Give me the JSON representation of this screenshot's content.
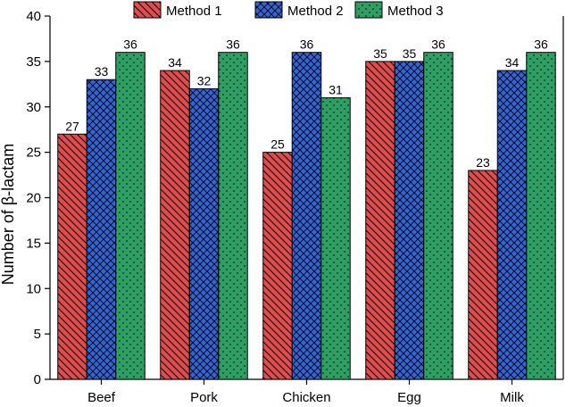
{
  "chart_data": {
    "type": "bar",
    "categories": [
      "Beef",
      "Pork",
      "Chicken",
      "Egg",
      "Milk"
    ],
    "series": [
      {
        "name": "Method 1",
        "values": [
          27,
          34,
          25,
          35,
          23
        ],
        "color": "#e84a4a",
        "pattern": "diagonal-hatch"
      },
      {
        "name": "Method 2",
        "values": [
          33,
          32,
          36,
          35,
          34
        ],
        "color": "#2f66d9",
        "pattern": "cross-hatch"
      },
      {
        "name": "Method 3",
        "values": [
          36,
          36,
          31,
          36,
          36
        ],
        "color": "#2e9f63",
        "pattern": "dots"
      }
    ],
    "ylabel": "Number of β-lactam",
    "xlabel": "",
    "ylim": [
      0,
      40
    ],
    "yticks": [
      0,
      5,
      10,
      15,
      20,
      25,
      30,
      35,
      40
    ],
    "legend_position": "top",
    "grid": false,
    "data_labels": true
  }
}
